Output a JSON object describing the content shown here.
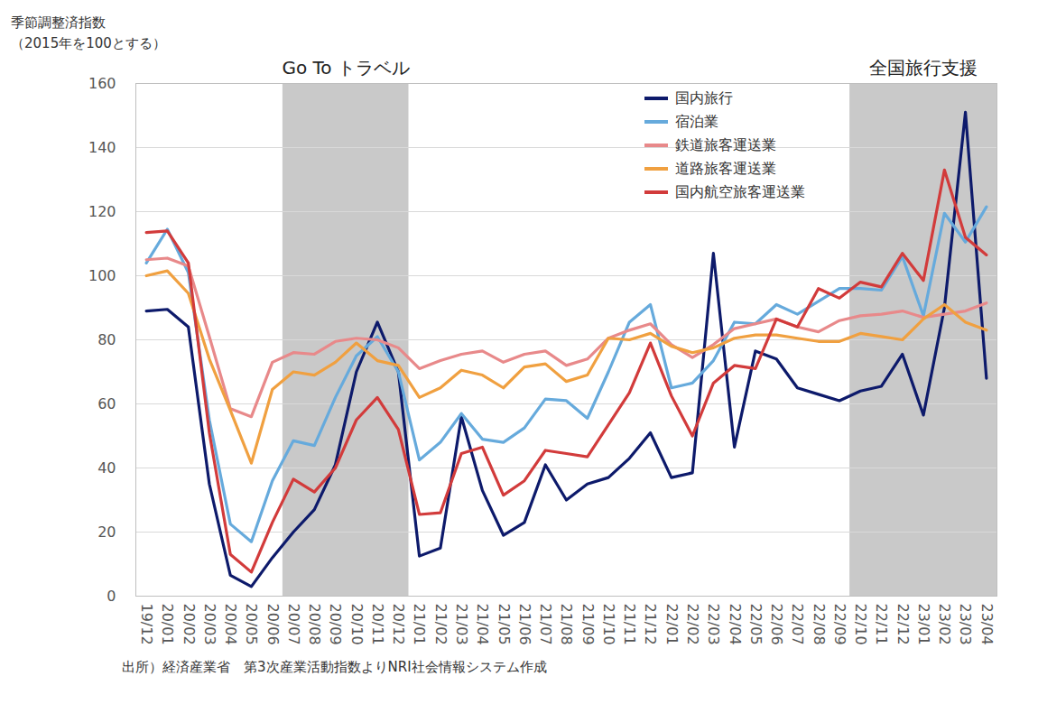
{
  "chart_data": {
    "type": "line",
    "y_label": [
      "季節調整済指数",
      "（2015年を100とする）"
    ],
    "caption": "出所）経済産業省　第3次産業活動指数よりNRI社会情報システム作成",
    "x": [
      "19/12",
      "20/01",
      "20/02",
      "20/03",
      "20/04",
      "20/05",
      "20/06",
      "20/07",
      "20/08",
      "20/09",
      "20/10",
      "20/11",
      "20/12",
      "21/01",
      "21/02",
      "21/03",
      "21/04",
      "21/05",
      "21/06",
      "21/07",
      "21/08",
      "21/09",
      "21/10",
      "21/11",
      "21/12",
      "22/01",
      "22/02",
      "22/03",
      "22/04",
      "22/05",
      "22/06",
      "22/07",
      "22/08",
      "22/09",
      "22/10",
      "22/11",
      "22/12",
      "23/01",
      "23/02",
      "23/03",
      "23/04"
    ],
    "ylim": [
      0,
      160
    ],
    "yticks": [
      0,
      20,
      40,
      60,
      80,
      100,
      120,
      140,
      160
    ],
    "grid": true,
    "legend": "top-right",
    "shaded_periods": [
      {
        "label": "Go To トラベル",
        "start": "20/07",
        "end": "20/12"
      },
      {
        "label": "全国旅行支援",
        "start": "22/10",
        "end": "23/04"
      }
    ],
    "series": [
      {
        "name": "国内旅行",
        "color": "#0d1a6b",
        "values": [
          89,
          89.5,
          84,
          35,
          6.5,
          3,
          12,
          20,
          27,
          41,
          70,
          85.5,
          70,
          12.5,
          15,
          56,
          33,
          19,
          23,
          41,
          30,
          35,
          37,
          43,
          51,
          37,
          38.5,
          107,
          46.5,
          76.5,
          74,
          65,
          63,
          61,
          64,
          65.5,
          75.5,
          56.5,
          90,
          151,
          68
        ]
      },
      {
        "name": "宿泊業",
        "color": "#66aadc",
        "values": [
          104,
          114.5,
          101,
          55,
          22.5,
          17,
          36,
          48.5,
          47,
          62,
          75,
          81,
          70,
          42.5,
          48,
          57,
          49,
          48,
          52.5,
          61.5,
          61,
          55.5,
          70,
          85.5,
          91,
          65,
          66.5,
          73.5,
          85.5,
          85,
          91,
          88,
          92,
          96,
          96,
          95.5,
          106,
          87.5,
          119.5,
          110.5,
          121.5
        ]
      },
      {
        "name": "鉄道旅客運送業",
        "color": "#e8898a",
        "values": [
          105,
          105.5,
          103,
          81,
          58.5,
          56,
          73,
          76,
          75.5,
          79.5,
          80.5,
          80,
          77.5,
          71,
          73.5,
          75.5,
          76.5,
          73,
          75.5,
          76.5,
          72,
          74,
          80.5,
          83,
          85,
          78.5,
          74.5,
          78.5,
          83.5,
          85,
          86.5,
          84,
          82.5,
          86,
          87.5,
          88,
          89,
          87,
          88,
          89,
          91.5
        ]
      },
      {
        "name": "道路旅客運送業",
        "color": "#f0a040",
        "values": [
          100,
          101.5,
          94.5,
          74,
          58,
          41.5,
          64.5,
          70,
          69,
          73,
          79,
          73.5,
          72,
          62,
          65,
          70.5,
          69,
          65,
          71.5,
          72.5,
          67,
          69,
          80.5,
          80,
          82,
          78,
          76,
          77.5,
          80.5,
          81.5,
          81.5,
          80.5,
          79.5,
          79.5,
          82,
          81,
          80,
          86.5,
          91,
          85.5,
          83
        ]
      },
      {
        "name": "国内航空旅客運送業",
        "color": "#d23b3b",
        "values": [
          113.5,
          114,
          104,
          51,
          13,
          7.5,
          23,
          36.5,
          32.5,
          40,
          55,
          62,
          52,
          25.5,
          26,
          44.5,
          46.5,
          31.5,
          36,
          45.5,
          44.5,
          43.5,
          53.5,
          63.5,
          79,
          62.5,
          50,
          66.5,
          72,
          71,
          86.5,
          84,
          96,
          93,
          98,
          96.5,
          107,
          98.5,
          133,
          112,
          106.5
        ]
      }
    ]
  }
}
